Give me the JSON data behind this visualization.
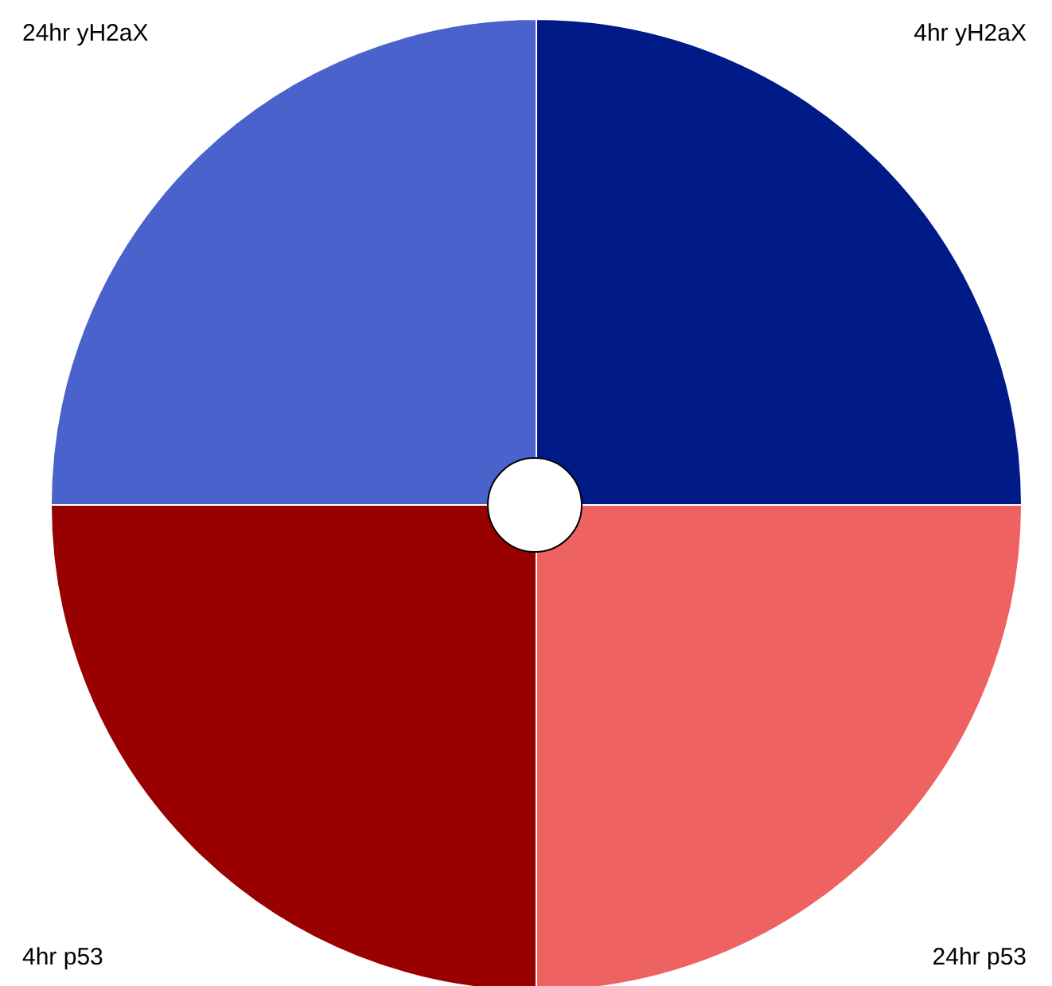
{
  "chart_data": {
    "type": "pie",
    "categories": [
      "4hr yH2aX",
      "24hr p53",
      "4hr p53",
      "24hr yH2aX"
    ],
    "values": [
      25,
      25,
      25,
      25
    ],
    "colors": [
      "#001a88",
      "#ee6262",
      "#990000",
      "#4a62cc"
    ]
  }
}
